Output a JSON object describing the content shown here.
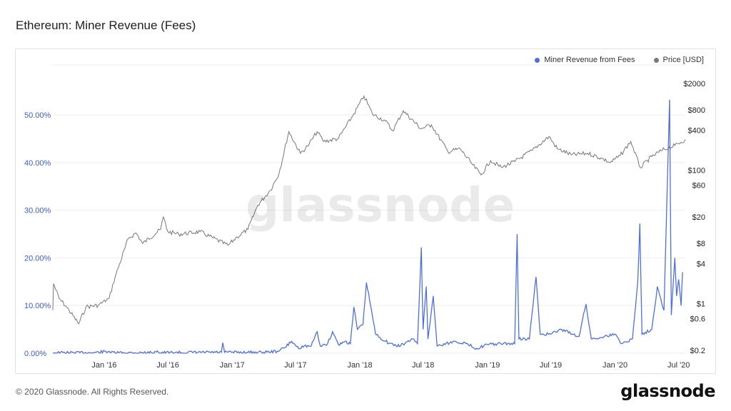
{
  "title": "Ethereum: Miner Revenue (Fees)",
  "footer": {
    "copyright": "© 2020 Glassnode. All Rights Reserved.",
    "brand": "glassnode"
  },
  "watermark": "glassnode",
  "colors": {
    "fees": "#4f6fdf",
    "price": "#777777",
    "legend_price": "#7a7a7a",
    "grid": "#eeeeee"
  },
  "legend": [
    {
      "label": "Miner Revenue from Fees",
      "color": "#4f6fdf"
    },
    {
      "label": "Price [USD]",
      "color": "#7a7a7a"
    }
  ],
  "chart_data": {
    "type": "line",
    "x_range": [
      "2015-08-07",
      "2020-07-20"
    ],
    "x_ticks": [
      {
        "label": "Jan '16",
        "date": "2016-01-01"
      },
      {
        "label": "Jul '16",
        "date": "2016-07-01"
      },
      {
        "label": "Jan '17",
        "date": "2017-01-01"
      },
      {
        "label": "Jul '17",
        "date": "2017-07-01"
      },
      {
        "label": "Jan '18",
        "date": "2018-01-01"
      },
      {
        "label": "Jul '18",
        "date": "2018-07-01"
      },
      {
        "label": "Jan '19",
        "date": "2019-01-01"
      },
      {
        "label": "Jul '19",
        "date": "2019-07-01"
      },
      {
        "label": "Jan '20",
        "date": "2020-01-01"
      },
      {
        "label": "Jul '20",
        "date": "2020-07-01"
      }
    ],
    "y_left": {
      "label": "",
      "ylim": [
        0,
        0.5
      ],
      "ticks": [
        {
          "label": "0.00%",
          "value": 0
        },
        {
          "label": "10.00%",
          "value": 0.1
        },
        {
          "label": "20.00%",
          "value": 0.2
        },
        {
          "label": "30.00%",
          "value": 0.3
        },
        {
          "label": "40.00%",
          "value": 0.4
        },
        {
          "label": "50.00%",
          "value": 0.5
        }
      ]
    },
    "y_right": {
      "label": "",
      "scale": "log",
      "ticks": [
        {
          "label": "$0.2",
          "value": 0.2
        },
        {
          "label": "$0.6",
          "value": 0.6
        },
        {
          "label": "$1",
          "value": 1
        },
        {
          "label": "$4",
          "value": 4
        },
        {
          "label": "$8",
          "value": 8
        },
        {
          "label": "$20",
          "value": 20
        },
        {
          "label": "$60",
          "value": 60
        },
        {
          "label": "$100",
          "value": 100
        },
        {
          "label": "$400",
          "value": 400
        },
        {
          "label": "$800",
          "value": 800
        },
        {
          "label": "$2000",
          "value": 2000
        }
      ]
    },
    "series": [
      {
        "name": "Miner Revenue from Fees",
        "axis": "left",
        "points": [
          [
            "2015-08-07",
            0.001
          ],
          [
            "2015-12-01",
            0.001
          ],
          [
            "2016-01-15",
            0.004
          ],
          [
            "2016-01-20",
            0.001
          ],
          [
            "2016-05-15",
            0.001
          ],
          [
            "2016-06-01",
            0.005
          ],
          [
            "2016-06-05",
            0.001
          ],
          [
            "2016-12-01",
            0.002
          ],
          [
            "2016-12-05",
            0.022
          ],
          [
            "2016-12-10",
            0.002
          ],
          [
            "2017-04-01",
            0.002
          ],
          [
            "2017-05-10",
            0.004
          ],
          [
            "2017-06-01",
            0.012
          ],
          [
            "2017-06-20",
            0.025
          ],
          [
            "2017-07-10",
            0.01
          ],
          [
            "2017-07-20",
            0.015
          ],
          [
            "2017-08-15",
            0.015
          ],
          [
            "2017-09-01",
            0.045
          ],
          [
            "2017-09-10",
            0.015
          ],
          [
            "2017-10-01",
            0.02
          ],
          [
            "2017-10-15",
            0.045
          ],
          [
            "2017-11-01",
            0.018
          ],
          [
            "2017-11-20",
            0.025
          ],
          [
            "2017-12-05",
            0.02
          ],
          [
            "2017-12-15",
            0.097
          ],
          [
            "2017-12-25",
            0.05
          ],
          [
            "2018-01-10",
            0.06
          ],
          [
            "2018-01-20",
            0.148
          ],
          [
            "2018-02-01",
            0.1
          ],
          [
            "2018-02-15",
            0.04
          ],
          [
            "2018-03-15",
            0.025
          ],
          [
            "2018-04-15",
            0.015
          ],
          [
            "2018-05-10",
            0.02
          ],
          [
            "2018-06-01",
            0.03
          ],
          [
            "2018-06-15",
            0.02
          ],
          [
            "2018-06-26",
            0.222
          ],
          [
            "2018-07-01",
            0.05
          ],
          [
            "2018-07-10",
            0.14
          ],
          [
            "2018-07-15",
            0.03
          ],
          [
            "2018-07-30",
            0.12
          ],
          [
            "2018-08-10",
            0.015
          ],
          [
            "2018-10-01",
            0.025
          ],
          [
            "2018-11-01",
            0.02
          ],
          [
            "2018-12-01",
            0.01
          ],
          [
            "2019-01-01",
            0.018
          ],
          [
            "2019-02-15",
            0.02
          ],
          [
            "2019-03-20",
            0.02
          ],
          [
            "2019-03-27",
            0.25
          ],
          [
            "2019-04-01",
            0.03
          ],
          [
            "2019-05-01",
            0.03
          ],
          [
            "2019-05-20",
            0.16
          ],
          [
            "2019-06-01",
            0.04
          ],
          [
            "2019-07-01",
            0.04
          ],
          [
            "2019-08-01",
            0.05
          ],
          [
            "2019-09-20",
            0.035
          ],
          [
            "2019-10-10",
            0.103
          ],
          [
            "2019-10-25",
            0.03
          ],
          [
            "2019-12-01",
            0.035
          ],
          [
            "2020-01-01",
            0.04
          ],
          [
            "2020-01-20",
            0.02
          ],
          [
            "2020-02-20",
            0.03
          ],
          [
            "2020-03-06",
            0.15
          ],
          [
            "2020-03-12",
            0.272
          ],
          [
            "2020-03-18",
            0.04
          ],
          [
            "2020-04-15",
            0.05
          ],
          [
            "2020-05-01",
            0.14
          ],
          [
            "2020-05-20",
            0.09
          ],
          [
            "2020-06-05",
            0.532
          ],
          [
            "2020-06-10",
            0.08
          ],
          [
            "2020-06-20",
            0.2
          ],
          [
            "2020-06-25",
            0.12
          ],
          [
            "2020-07-01",
            0.155
          ],
          [
            "2020-07-08",
            0.1
          ],
          [
            "2020-07-12",
            0.17
          ]
        ]
      },
      {
        "name": "Price [USD]",
        "axis": "right",
        "points": [
          [
            "2015-08-07",
            0.8
          ],
          [
            "2015-08-09",
            2.0
          ],
          [
            "2015-08-25",
            1.2
          ],
          [
            "2015-09-15",
            0.9
          ],
          [
            "2015-10-20",
            0.5
          ],
          [
            "2015-11-10",
            0.9
          ],
          [
            "2015-12-15",
            0.95
          ],
          [
            "2016-01-15",
            1.2
          ],
          [
            "2016-02-01",
            2.5
          ],
          [
            "2016-03-10",
            9.5
          ],
          [
            "2016-04-01",
            11.5
          ],
          [
            "2016-04-20",
            8
          ],
          [
            "2016-06-10",
            13
          ],
          [
            "2016-06-18",
            20
          ],
          [
            "2016-07-01",
            12
          ],
          [
            "2016-08-01",
            11
          ],
          [
            "2016-10-01",
            12
          ],
          [
            "2016-12-20",
            7.5
          ],
          [
            "2017-01-15",
            10
          ],
          [
            "2017-02-15",
            13
          ],
          [
            "2017-03-15",
            30
          ],
          [
            "2017-04-20",
            50
          ],
          [
            "2017-05-15",
            90
          ],
          [
            "2017-06-12",
            380
          ],
          [
            "2017-07-15",
            180
          ],
          [
            "2017-08-05",
            230
          ],
          [
            "2017-09-01",
            380
          ],
          [
            "2017-09-20",
            270
          ],
          [
            "2017-11-01",
            300
          ],
          [
            "2017-12-15",
            700
          ],
          [
            "2018-01-13",
            1300
          ],
          [
            "2018-02-06",
            700
          ],
          [
            "2018-03-15",
            550
          ],
          [
            "2018-04-05",
            390
          ],
          [
            "2018-05-05",
            780
          ],
          [
            "2018-06-25",
            420
          ],
          [
            "2018-07-25",
            480
          ],
          [
            "2018-09-10",
            190
          ],
          [
            "2018-10-15",
            210
          ],
          [
            "2018-11-20",
            120
          ],
          [
            "2018-12-14",
            85
          ],
          [
            "2019-01-10",
            140
          ],
          [
            "2019-02-10",
            110
          ],
          [
            "2019-03-20",
            135
          ],
          [
            "2019-05-10",
            200
          ],
          [
            "2019-06-26",
            320
          ],
          [
            "2019-07-20",
            210
          ],
          [
            "2019-08-30",
            170
          ],
          [
            "2019-10-15",
            180
          ],
          [
            "2019-11-25",
            150
          ],
          [
            "2019-12-18",
            130
          ],
          [
            "2020-01-15",
            165
          ],
          [
            "2020-02-15",
            270
          ],
          [
            "2020-03-13",
            110
          ],
          [
            "2020-04-15",
            160
          ],
          [
            "2020-05-15",
            200
          ],
          [
            "2020-06-20",
            235
          ],
          [
            "2020-07-20",
            290
          ]
        ]
      }
    ],
    "grid": true,
    "legend_position": "top-right"
  }
}
